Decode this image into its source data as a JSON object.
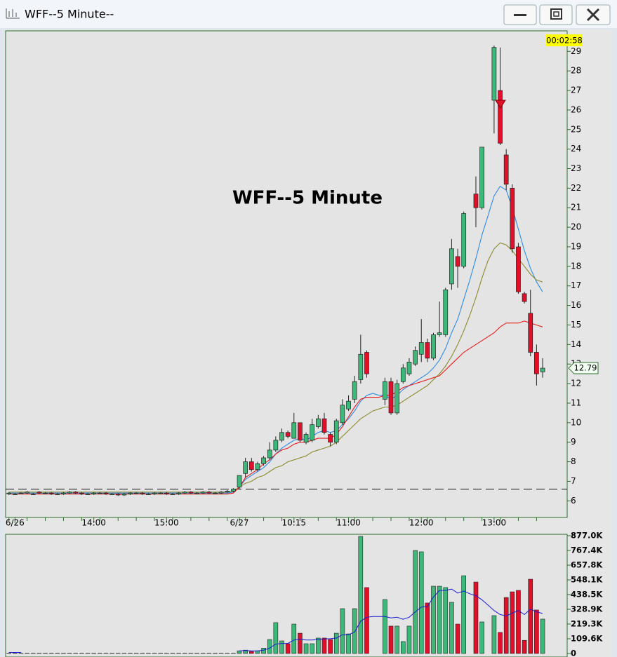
{
  "window": {
    "title": "WFF--5 Minute--"
  },
  "chart_data": [
    {
      "type": "candlestick",
      "title": "WFF--5 Minute",
      "timer": "00:02:58",
      "last_price": 12.79,
      "reference_line": 6.6,
      "up_color": "#3cb878",
      "down_color": "#e0102a",
      "categories": [
        null,
        "6/26",
        null,
        null,
        null,
        null,
        null,
        null,
        null,
        null,
        null,
        null,
        null,
        null,
        "14:00",
        null,
        null,
        null,
        null,
        null,
        null,
        null,
        null,
        null,
        null,
        null,
        "15:00",
        null,
        null,
        null,
        null,
        null,
        null,
        null,
        null,
        null,
        null,
        null,
        "6/27",
        null,
        null,
        null,
        null,
        null,
        null,
        null,
        null,
        "10:15",
        null,
        null,
        null,
        null,
        null,
        null,
        null,
        null,
        "11:00",
        null,
        null,
        null,
        null,
        null,
        null,
        null,
        null,
        null,
        null,
        null,
        "12:00",
        null,
        null,
        null,
        null,
        null,
        null,
        null,
        null,
        null,
        null,
        null,
        "13:00",
        null,
        null,
        null,
        null,
        null,
        null,
        null,
        null
      ],
      "open": [
        6.35,
        6.35,
        6.4,
        6.4,
        6.35,
        6.45,
        6.4,
        6.4,
        6.35,
        6.35,
        6.4,
        6.45,
        6.4,
        6.35,
        6.35,
        6.4,
        6.4,
        6.35,
        6.35,
        6.3,
        6.35,
        6.4,
        6.4,
        6.35,
        6.35,
        6.4,
        6.4,
        6.35,
        6.35,
        6.4,
        6.45,
        6.4,
        6.4,
        6.45,
        6.4,
        6.4,
        6.45,
        6.5,
        6.7,
        7.4,
        8.0,
        7.6,
        7.9,
        8.2,
        8.6,
        9.1,
        9.5,
        9.2,
        10.0,
        9.0,
        9.1,
        9.8,
        10.2,
        9.4,
        9.0,
        10.0,
        10.7,
        11.2,
        12.2,
        13.6,
        null,
        null,
        11.2,
        12.1,
        10.5,
        12.1,
        12.5,
        13.0,
        13.5,
        14.1,
        13.3,
        14.5,
        14.5,
        17.1,
        18.5,
        18.0,
        null,
        21.7,
        21.0,
        null,
        26.5,
        27.0,
        23.7,
        22.0,
        19.0,
        16.6,
        15.6,
        13.6,
        12.6
      ],
      "high": [
        6.45,
        6.4,
        6.45,
        6.5,
        6.4,
        6.5,
        6.45,
        6.45,
        6.4,
        6.45,
        6.5,
        6.5,
        6.45,
        6.4,
        6.45,
        6.45,
        6.45,
        6.4,
        6.4,
        6.4,
        6.45,
        6.45,
        6.45,
        6.4,
        6.45,
        6.45,
        6.45,
        6.4,
        6.45,
        6.5,
        6.5,
        6.45,
        6.5,
        6.5,
        6.45,
        6.5,
        6.55,
        6.65,
        7.3,
        8.2,
        8.2,
        8.0,
        8.3,
        9.0,
        9.3,
        9.7,
        9.6,
        10.5,
        10.0,
        9.5,
        10.2,
        10.4,
        10.5,
        9.5,
        10.2,
        11.2,
        11.4,
        12.4,
        14.5,
        13.7,
        null,
        null,
        12.3,
        12.3,
        12.2,
        13.0,
        13.3,
        13.9,
        15.3,
        14.3,
        14.6,
        16.2,
        16.9,
        19.4,
        18.9,
        20.8,
        null,
        22.6,
        24.1,
        null,
        29.3,
        29.2,
        24.0,
        22.2,
        19.2,
        16.7,
        16.8,
        14.0,
        13.3
      ],
      "low": [
        6.3,
        6.3,
        6.35,
        6.35,
        6.3,
        6.35,
        6.35,
        6.3,
        6.3,
        6.3,
        6.35,
        6.35,
        6.3,
        6.3,
        6.3,
        6.35,
        6.3,
        6.3,
        6.25,
        6.25,
        6.3,
        6.35,
        6.3,
        6.3,
        6.3,
        6.35,
        6.3,
        6.3,
        6.3,
        6.35,
        6.35,
        6.35,
        6.35,
        6.35,
        6.35,
        6.35,
        6.4,
        6.45,
        6.6,
        7.2,
        7.5,
        7.5,
        7.8,
        8.1,
        8.5,
        9.0,
        9.2,
        9.2,
        9.0,
        8.9,
        9.0,
        9.7,
        9.4,
        8.8,
        8.9,
        9.9,
        10.6,
        11.0,
        12.0,
        12.3,
        null,
        null,
        10.9,
        10.4,
        10.4,
        12.0,
        12.4,
        12.9,
        13.1,
        13.1,
        13.2,
        14.4,
        14.4,
        16.8,
        16.9,
        17.9,
        null,
        20.0,
        20.9,
        null,
        24.8,
        24.2,
        21.9,
        18.7,
        16.6,
        16.1,
        13.4,
        11.9,
        12.3
      ],
      "close": [
        6.4,
        6.35,
        6.4,
        6.45,
        6.35,
        6.4,
        6.4,
        6.35,
        6.35,
        6.4,
        6.45,
        6.4,
        6.35,
        6.35,
        6.4,
        6.4,
        6.35,
        6.35,
        6.3,
        6.35,
        6.4,
        6.4,
        6.35,
        6.35,
        6.4,
        6.4,
        6.35,
        6.35,
        6.4,
        6.45,
        6.4,
        6.4,
        6.45,
        6.4,
        6.4,
        6.45,
        6.5,
        6.6,
        7.3,
        8.0,
        7.6,
        7.9,
        8.2,
        8.6,
        9.1,
        9.5,
        9.3,
        10.0,
        9.1,
        9.4,
        9.9,
        10.2,
        9.5,
        9.0,
        10.1,
        10.9,
        11.1,
        12.1,
        13.5,
        12.5,
        null,
        null,
        12.1,
        10.5,
        12.0,
        12.8,
        13.1,
        13.7,
        14.1,
        13.3,
        14.5,
        14.6,
        16.8,
        18.9,
        18.0,
        20.7,
        null,
        21.0,
        24.1,
        null,
        29.2,
        24.3,
        22.2,
        18.9,
        16.7,
        16.2,
        13.6,
        12.5,
        12.79
      ],
      "lines": [
        {
          "color": "#2f8ae0",
          "values": [
            6.4,
            6.4,
            6.4,
            6.4,
            6.4,
            6.4,
            6.4,
            6.4,
            6.4,
            6.4,
            6.4,
            6.4,
            6.4,
            6.4,
            6.4,
            6.4,
            6.4,
            6.4,
            6.4,
            6.4,
            6.4,
            6.4,
            6.4,
            6.4,
            6.4,
            6.4,
            6.4,
            6.4,
            6.4,
            6.4,
            6.4,
            6.4,
            6.4,
            6.4,
            6.4,
            6.4,
            6.4,
            6.45,
            6.7,
            7.1,
            7.3,
            7.5,
            7.7,
            8.0,
            8.4,
            8.7,
            8.9,
            9.1,
            9.2,
            9.1,
            9.3,
            9.5,
            9.6,
            9.5,
            9.6,
            9.9,
            10.2,
            10.6,
            11.1,
            11.4,
            11.5,
            11.4,
            11.4,
            11.2,
            11.4,
            11.7,
            11.9,
            12.1,
            12.3,
            12.5,
            12.8,
            13.2,
            13.8,
            14.6,
            15.3,
            16.3,
            17.3,
            18.4,
            19.6,
            20.6,
            21.6,
            22.1,
            21.9,
            21.0,
            19.9,
            18.8,
            17.9,
            17.2,
            16.7
          ]
        },
        {
          "color": "#8c8a2c",
          "values": [
            6.45,
            6.45,
            6.45,
            6.45,
            6.45,
            6.45,
            6.45,
            6.45,
            6.45,
            6.45,
            6.45,
            6.45,
            6.45,
            6.45,
            6.45,
            6.45,
            6.45,
            6.45,
            6.45,
            6.45,
            6.45,
            6.45,
            6.45,
            6.45,
            6.45,
            6.45,
            6.45,
            6.45,
            6.45,
            6.45,
            6.45,
            6.45,
            6.45,
            6.45,
            6.45,
            6.45,
            6.45,
            6.5,
            6.7,
            6.9,
            7.0,
            7.2,
            7.3,
            7.5,
            7.7,
            7.8,
            8.0,
            8.1,
            8.2,
            8.3,
            8.5,
            8.6,
            8.7,
            8.8,
            9.0,
            9.3,
            9.6,
            9.9,
            10.2,
            10.4,
            10.6,
            10.7,
            10.8,
            10.8,
            10.9,
            11.1,
            11.3,
            11.5,
            11.7,
            11.9,
            12.2,
            12.5,
            12.9,
            13.4,
            14.0,
            14.7,
            15.5,
            16.4,
            17.4,
            18.3,
            18.9,
            19.2,
            19.1,
            18.8,
            18.4,
            18.0,
            17.6,
            17.3,
            17.2
          ]
        },
        {
          "color": "#e41c1c",
          "values": [
            6.35,
            6.35,
            6.35,
            6.35,
            6.35,
            6.35,
            6.35,
            6.35,
            6.35,
            6.35,
            6.35,
            6.35,
            6.35,
            6.35,
            6.35,
            6.35,
            6.35,
            6.35,
            6.35,
            6.35,
            6.35,
            6.35,
            6.35,
            6.35,
            6.35,
            6.35,
            6.35,
            6.35,
            6.35,
            6.35,
            6.35,
            6.35,
            6.35,
            6.35,
            6.35,
            6.35,
            6.35,
            6.4,
            6.7,
            7.2,
            7.4,
            7.6,
            7.9,
            8.1,
            8.4,
            8.6,
            8.7,
            8.9,
            9.0,
            9.0,
            9.1,
            9.2,
            9.2,
            9.2,
            9.4,
            9.8,
            10.3,
            10.8,
            11.2,
            11.3,
            11.3,
            11.3,
            11.4,
            11.4,
            11.6,
            11.8,
            11.9,
            12.0,
            12.1,
            12.2,
            12.3,
            12.4,
            12.7,
            13.0,
            13.3,
            13.6,
            13.8,
            14.0,
            14.2,
            14.4,
            14.6,
            14.9,
            15.1,
            15.1,
            15.1,
            15.2,
            15.1,
            15.0,
            14.9
          ]
        }
      ],
      "ylim": [
        5.15,
        30.05
      ],
      "yticks": [
        6,
        7,
        8,
        9,
        10,
        11,
        12,
        13,
        14,
        15,
        16,
        17,
        18,
        19,
        20,
        21,
        22,
        23,
        24,
        25,
        26,
        27,
        28,
        29
      ]
    },
    {
      "type": "bar",
      "values": [
        2000,
        2000,
        2000,
        2000,
        2000,
        2000,
        2000,
        2000,
        2000,
        2000,
        2000,
        2000,
        2000,
        2000,
        2000,
        2000,
        2000,
        2000,
        2000,
        2000,
        2000,
        2000,
        2000,
        2000,
        2000,
        2000,
        2000,
        2000,
        2000,
        2000,
        2000,
        2000,
        2000,
        2000,
        2000,
        2000,
        2000,
        2000,
        20000,
        25000,
        15000,
        20000,
        40000,
        104000,
        230000,
        94000,
        73000,
        219000,
        151000,
        73000,
        73000,
        115000,
        115000,
        104000,
        151000,
        334000,
        146000,
        334000,
        872000,
        491000,
        null,
        null,
        402000,
        204000,
        204000,
        89000,
        204000,
        767000,
        757000,
        376000,
        501000,
        501000,
        491000,
        381000,
        219000,
        579000,
        null,
        532000,
        235000,
        null,
        282000,
        157000,
        417000,
        459000,
        470000,
        98000,
        553000,
        324000,
        256000
      ],
      "line": {
        "color": "#1a1ad0",
        "values": [
          8000,
          8000,
          8000,
          null,
          null,
          null,
          null,
          null,
          null,
          null,
          null,
          null,
          null,
          null,
          null,
          null,
          null,
          null,
          null,
          null,
          null,
          null,
          null,
          null,
          null,
          null,
          null,
          null,
          null,
          null,
          null,
          null,
          null,
          null,
          null,
          null,
          null,
          null,
          20000,
          22000,
          20000,
          20000,
          25000,
          40000,
          70000,
          75000,
          75000,
          100000,
          105000,
          100000,
          100000,
          105000,
          108000,
          110000,
          115000,
          140000,
          140000,
          160000,
          240000,
          270000,
          275000,
          275000,
          275000,
          265000,
          270000,
          255000,
          270000,
          310000,
          345000,
          350000,
          420000,
          470000,
          470000,
          480000,
          450000,
          465000,
          445000,
          430000,
          400000,
          360000,
          320000,
          290000,
          280000,
          300000,
          320000,
          290000,
          330000,
          310000,
          298000
        ]
      },
      "ylim": [
        0,
        877000
      ],
      "yticks": [
        {
          "value": 877000,
          "label": "877.0K"
        },
        {
          "value": 767400,
          "label": "767.4K"
        },
        {
          "value": 657800,
          "label": "657.8K"
        },
        {
          "value": 548100,
          "label": "548.1K"
        },
        {
          "value": 438500,
          "label": "438.5K"
        },
        {
          "value": 328900,
          "label": "328.9K"
        },
        {
          "value": 219300,
          "label": "219.3K"
        },
        {
          "value": 109600,
          "label": "109.6K"
        },
        0
      ]
    }
  ]
}
